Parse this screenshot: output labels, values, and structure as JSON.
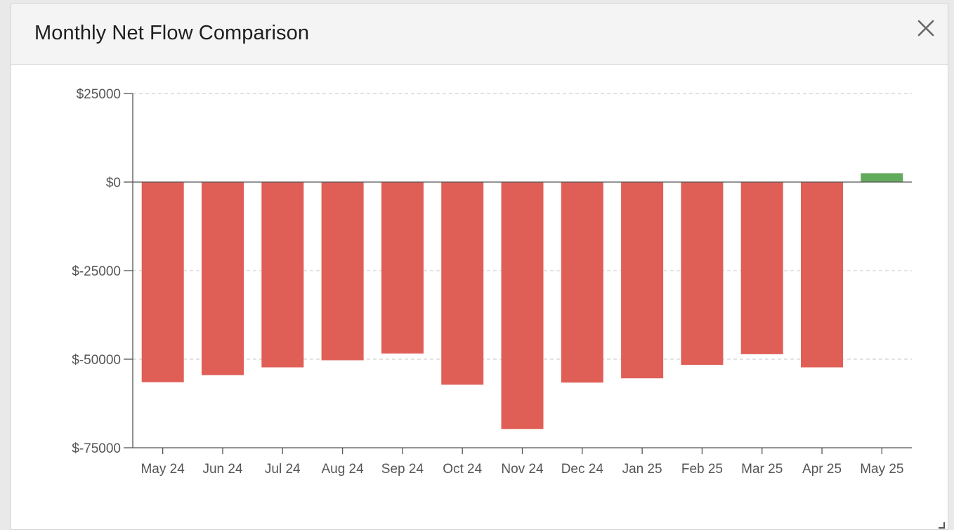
{
  "dialog": {
    "title": "Monthly Net Flow Comparison",
    "close_icon": "close-icon"
  },
  "chart_data": {
    "type": "bar",
    "categories": [
      "May 24",
      "Jun 24",
      "Jul 24",
      "Aug 24",
      "Sep 24",
      "Oct 24",
      "Nov 24",
      "Dec 24",
      "Jan 25",
      "Feb 25",
      "Mar 25",
      "Apr 25",
      "May 25"
    ],
    "values": [
      -56500,
      -54500,
      -52300,
      -50300,
      -48400,
      -57200,
      -69700,
      -56600,
      -55400,
      -51600,
      -48600,
      -52300,
      2500
    ],
    "ylim": [
      -75000,
      25000
    ],
    "yticks": [
      25000,
      0,
      -25000,
      -50000,
      -75000
    ],
    "ytick_labels": [
      "$25000",
      "$0",
      "$-25000",
      "$-50000",
      "$-75000"
    ],
    "title": "",
    "xlabel": "",
    "ylabel": "",
    "grid": true,
    "colors": {
      "negative": "#df5f57",
      "positive": "#63ab5c"
    }
  }
}
